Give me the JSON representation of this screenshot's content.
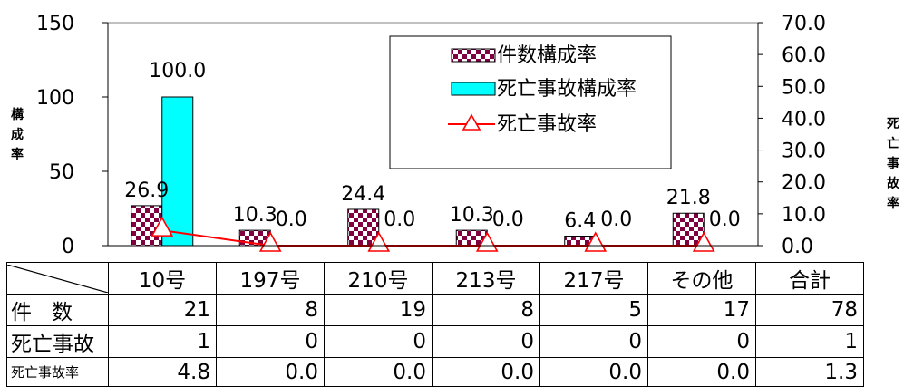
{
  "chart_data": {
    "type": "bar",
    "categories": [
      "10号",
      "197号",
      "210号",
      "213号",
      "217号",
      "その他"
    ],
    "series": [
      {
        "name": "件数構成率",
        "axis": "left",
        "values": [
          26.9,
          10.3,
          24.4,
          10.3,
          6.4,
          21.8
        ],
        "color": "#800040",
        "pattern": "checker"
      },
      {
        "name": "死亡事故構成率",
        "axis": "left",
        "values": [
          100.0,
          0.0,
          0.0,
          0.0,
          0.0,
          0.0
        ],
        "color": "#00ffff"
      },
      {
        "name": "死亡事故率",
        "type": "line",
        "axis": "right",
        "values": [
          4.8,
          0.0,
          0.0,
          0.0,
          0.0,
          0.0
        ],
        "color": "#ff0000",
        "marker": "triangle-open"
      }
    ],
    "bar_labels": [
      "26.9",
      "10.3",
      "24.4",
      "10.3",
      "6.4",
      "21.8"
    ],
    "fatal_share_labels": [
      "100.0",
      "0.0",
      "0.0",
      "0.0",
      "0.0",
      "0.0"
    ],
    "ylabel": "構成率",
    "y2label": "死亡事故率",
    "ylim": [
      0,
      150
    ],
    "y_ticks": [
      "0",
      "50",
      "100",
      "150"
    ],
    "y2lim": [
      0,
      70
    ],
    "y2_ticks": [
      "0.0",
      "10.0",
      "20.0",
      "30.0",
      "40.0",
      "50.0",
      "60.0",
      "70.0"
    ],
    "grid": false,
    "legend_position": "top-right"
  },
  "table": {
    "columns": [
      "10号",
      "197号",
      "210号",
      "213号",
      "217号",
      "その他",
      "合計"
    ],
    "rows": [
      {
        "label": "件数",
        "values": [
          "21",
          "8",
          "19",
          "8",
          "5",
          "17",
          "78"
        ]
      },
      {
        "label": "死亡事故",
        "values": [
          "1",
          "0",
          "0",
          "0",
          "0",
          "0",
          "1"
        ]
      },
      {
        "label": "死亡事故率",
        "values": [
          "4.8",
          "0.0",
          "0.0",
          "0.0",
          "0.0",
          "0.0",
          "1.3"
        ]
      }
    ]
  }
}
